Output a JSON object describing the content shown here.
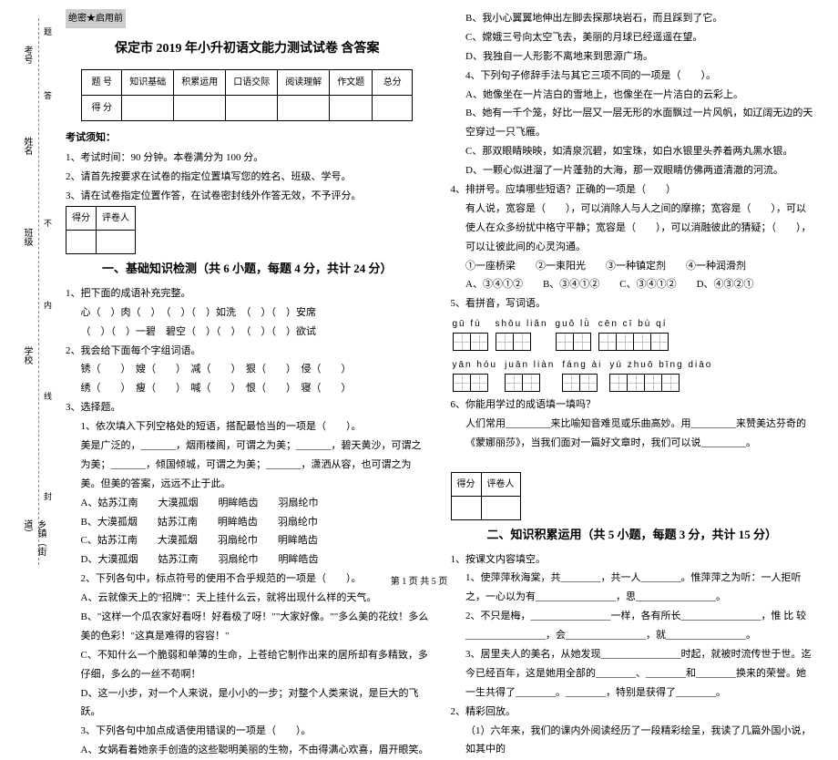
{
  "margin": {
    "labels": [
      "考号",
      "姓名",
      "班级",
      "学校",
      "乡镇（街道）"
    ],
    "sideText": [
      "题",
      "答",
      "不",
      "内",
      "线",
      "封"
    ]
  },
  "headerMark": "绝密★启用前",
  "title": "保定市 2019 年小升初语文能力测试试卷  含答案",
  "scoreTable": {
    "headers": [
      "题 号",
      "知识基础",
      "积累运用",
      "口语交际",
      "阅读理解",
      "作文题",
      "总分"
    ],
    "row2": [
      "得 分",
      "",
      "",
      "",
      "",
      "",
      ""
    ]
  },
  "examNoticeTitle": "考试须知：",
  "notices": [
    "1、考试时间：90 分钟。本卷满分为 100 分。",
    "2、请首先按要求在试卷的指定位置填写您的姓名、班级、学号。",
    "3、请在试卷指定位置作答，在试卷密封线外作答无效，不予评分。"
  ],
  "scorerBox": {
    "c1": "得分",
    "c2": "评卷人"
  },
  "section1Title": "一、基础知识检测（共 6 小题，每题 4 分，共计 24 分）",
  "q1": {
    "stem": "1、把下面的成语补充完整。",
    "lines": [
      "心（　）肉（　）　（　）（　）如洗　（　）（　）安席",
      "（　）（　）一碧　碧空（　）（　）　（　）（　）欲试"
    ]
  },
  "q2": {
    "stem": "2、我会给下面每个字组词语。",
    "lines": [
      "锈（　　）　嫂（　　）　减（　　）　狠（　　）　侵（　　）",
      "绣（　　）　瘦（　　）　喊（　　）　恨（　　）　寝（　　）"
    ]
  },
  "q3": {
    "stem": "3、选择题。",
    "sub1_stem": "1、依次填入下列空格处的短语，搭配最恰当的一项是（　　）。",
    "sub1_body": "美是广泛的，_______，烟雨楼阁，可谓之为美；_______，碧天黄沙，可谓之为美；_______，倾国倾城，可谓之为美；_______，潇洒从容，也可谓之为美。但美的答案，远远不止于此。",
    "sub1_opts": [
      "A、姑苏江南　　大漠孤烟　　明眸皓齿　　羽扇纶巾",
      "B、大漠孤烟　　姑苏江南　　明眸皓齿　　羽扇纶巾",
      "C、姑苏江南　　大漠孤烟　　羽扇纶巾　　明眸皓齿",
      "D、大漠孤烟　　姑苏江南　　羽扇纶巾　　明眸皓齿"
    ],
    "sub2_stem": "2、下列各句中，标点符号的使用不合乎规范的一项是（　　）。",
    "sub2_opts": [
      "A、云就像天上的\"招牌\"：天上挂什么云，就将出现什么样的天气。",
      "B、\"这样一个瓜农家好看呀！好看极了呀！\"\"大家好像。\"\"多么美的花纹！多么美的色彩！\"这真是难得的容容！\"",
      "C、不知什么一个脆弱和单薄的生命，上苍给它制作出来的居所却有多精致，多仔细，多么的一丝不苟啊！",
      "D、这一小步，对一个人来说，是小小的一步；对整个人类来说，是巨大的飞跃。"
    ],
    "sub3_stem": "3、下列各句中加点成语使用错误的​一项是（　　）。",
    "sub3_opts": [
      "A、女娲看着她亲手创造的这些聪明美丽的生物，不由得满心欢喜，眉开眼笑。"
    ]
  },
  "col2": {
    "q3b_opts": [
      "B、我小心翼翼地伸出左脚去探那块岩石，而且踩到了它。",
      "C、嫦娥三号向太空飞去，美丽的月球已经遥遥在望。",
      "D、我独自一人形影不离地来到思源广场。"
    ],
    "sub4_stem": "4、下列句子修辞手法与其它三项不同的一项是（　　）。",
    "sub4_opts": [
      "A、她像坐在一片洁白的雪地上，也像坐在一片洁白的云彩上。",
      "B、她有一千个笼，好比一层又一层无形的水面飘过一片风帆，如辽阔无边的天空穿过一只飞雁。",
      "C、那双眼睛映映，如清泉沉碧，如宝珠，如白水银里头养着两丸黑水银。",
      "D、一颗心似进溜了一片蓬勃的大海，那一双眼睛仿佛两道清澈的河流。"
    ],
    "q4_stem": "4、排拼号。应填哪些短语？正确的一项是（　　）",
    "q4_body": "有人说，宽容是（　　），可以消除人与人之间的摩擦；宽容是（　　），可以使人在众多纷扰中格守平静；宽容是（　　），可以消融彼此的猜疑；（　　），可以让彼此间的心灵沟通。",
    "q4_items": "①一座桥梁　　②一束阳光　　③一种镇定剂　　④一种润滑剂",
    "q4_opts": "A、③④①②　　B、③④①②　　C、③④①②　　D、④③②①",
    "q5_stem": "5、看拼音，写词语。",
    "q5_pinyin_row1": [
      "gū  fù",
      "shōu liǎn",
      "guǒ  lǜ",
      "cēn  cī   bù  qí"
    ],
    "q5_counts_row1": [
      2,
      2,
      2,
      4
    ],
    "q5_pinyin_row2": [
      "yān  hóu",
      "juān liàn",
      "fáng  ài",
      "yú zhuō bīng diāo"
    ],
    "q5_counts_row2": [
      2,
      2,
      2,
      4
    ],
    "q6_stem": "6、你能用学过的成语填一填吗？",
    "q6_body": "人们常用_________来比喻知音难觅或乐曲高妙。用_________来赞美达芬奇的《蒙娜丽莎》，当我们面对一篇好文章时，我们可以说_________。",
    "section2Title": "二、知识积累运用（共 5 小题，每题 3 分，共计 15 分）",
    "s2q1_stem": "1、按课文内容填空。",
    "s2q1_lines": [
      "1、使萍萍秋海棠，共________，共一人________。惟萍萍之为听：一人拒听之，一心以为有________________，思________________。",
      "2、不只是梅，________________一样，各有所长________________，惟 比 较________________，会________________，就________________。",
      "3、居里夫人的美名，从她发现________________时起，就被时流传世于世。迄今已经百年，这是她用全部的________、________和________换来的荣誉。她一生共得了________。________，特别是获得了________。"
    ],
    "s2q2_stem": "2、精彩回放。",
    "s2q2_body": "（1）六年来，我们的课内外阅读经历了一段精彩绘呈，我读了几篇外国小说，如其中的"
  },
  "footer": "第 1 页 共 5 页"
}
